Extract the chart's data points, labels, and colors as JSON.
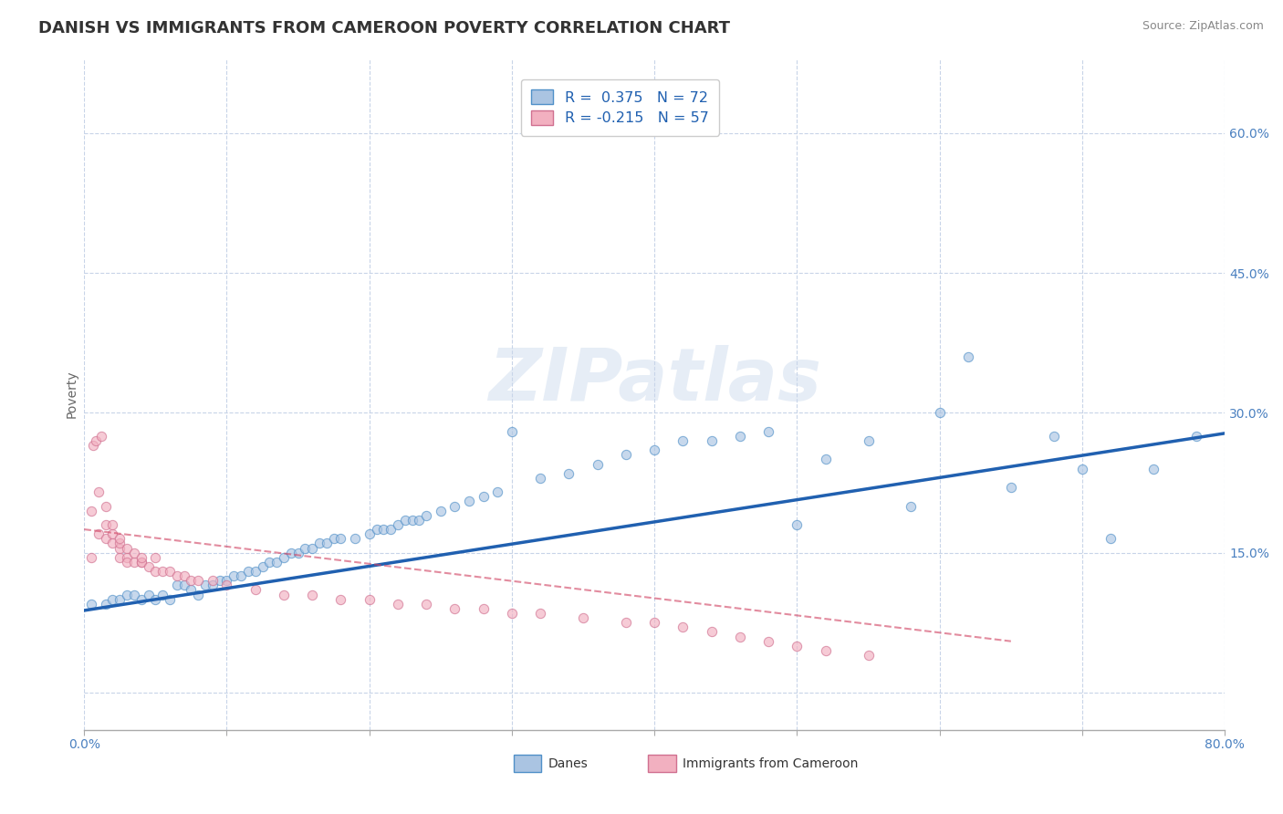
{
  "title": "DANISH VS IMMIGRANTS FROM CAMEROON POVERTY CORRELATION CHART",
  "source": "Source: ZipAtlas.com",
  "ylabel": "Poverty",
  "xlim": [
    0.0,
    0.8
  ],
  "ylim": [
    -0.04,
    0.68
  ],
  "xticks": [
    0.0,
    0.1,
    0.2,
    0.3,
    0.4,
    0.5,
    0.6,
    0.7,
    0.8
  ],
  "ytick_positions": [
    0.0,
    0.15,
    0.3,
    0.45,
    0.6
  ],
  "ytick_labels": [
    "",
    "15.0%",
    "30.0%",
    "45.0%",
    "60.0%"
  ],
  "danes_R": 0.375,
  "danes_N": 72,
  "immigrants_R": -0.215,
  "immigrants_N": 57,
  "danes_color": "#aac4e2",
  "danes_edge_color": "#5090c8",
  "danes_line_color": "#2060b0",
  "immigrants_color": "#f2b0c0",
  "immigrants_edge_color": "#d07090",
  "immigrants_line_color": "#d04060",
  "background_color": "#ffffff",
  "grid_color": "#c8d4e8",
  "watermark": "ZIPatlas",
  "danes_x": [
    0.005,
    0.015,
    0.02,
    0.025,
    0.03,
    0.035,
    0.04,
    0.045,
    0.05,
    0.055,
    0.06,
    0.065,
    0.07,
    0.075,
    0.08,
    0.085,
    0.09,
    0.095,
    0.1,
    0.105,
    0.11,
    0.115,
    0.12,
    0.125,
    0.13,
    0.135,
    0.14,
    0.145,
    0.15,
    0.155,
    0.16,
    0.165,
    0.17,
    0.175,
    0.18,
    0.19,
    0.2,
    0.205,
    0.21,
    0.215,
    0.22,
    0.225,
    0.23,
    0.235,
    0.24,
    0.25,
    0.26,
    0.27,
    0.28,
    0.29,
    0.3,
    0.32,
    0.34,
    0.36,
    0.38,
    0.4,
    0.42,
    0.44,
    0.46,
    0.48,
    0.5,
    0.52,
    0.55,
    0.58,
    0.6,
    0.62,
    0.65,
    0.68,
    0.7,
    0.72,
    0.75,
    0.78
  ],
  "danes_y": [
    0.095,
    0.095,
    0.1,
    0.1,
    0.105,
    0.105,
    0.1,
    0.105,
    0.1,
    0.105,
    0.1,
    0.115,
    0.115,
    0.11,
    0.105,
    0.115,
    0.115,
    0.12,
    0.12,
    0.125,
    0.125,
    0.13,
    0.13,
    0.135,
    0.14,
    0.14,
    0.145,
    0.15,
    0.15,
    0.155,
    0.155,
    0.16,
    0.16,
    0.165,
    0.165,
    0.165,
    0.17,
    0.175,
    0.175,
    0.175,
    0.18,
    0.185,
    0.185,
    0.185,
    0.19,
    0.195,
    0.2,
    0.205,
    0.21,
    0.215,
    0.28,
    0.23,
    0.235,
    0.245,
    0.255,
    0.26,
    0.27,
    0.27,
    0.275,
    0.28,
    0.18,
    0.25,
    0.27,
    0.2,
    0.3,
    0.36,
    0.22,
    0.275,
    0.24,
    0.165,
    0.24,
    0.275
  ],
  "immigrants_x": [
    0.005,
    0.005,
    0.01,
    0.01,
    0.015,
    0.015,
    0.015,
    0.02,
    0.02,
    0.02,
    0.025,
    0.025,
    0.025,
    0.025,
    0.03,
    0.03,
    0.03,
    0.035,
    0.035,
    0.04,
    0.04,
    0.04,
    0.045,
    0.05,
    0.05,
    0.055,
    0.06,
    0.065,
    0.07,
    0.075,
    0.08,
    0.09,
    0.1,
    0.12,
    0.14,
    0.16,
    0.18,
    0.2,
    0.22,
    0.24,
    0.26,
    0.28,
    0.3,
    0.32,
    0.35,
    0.38,
    0.4,
    0.42,
    0.44,
    0.46,
    0.48,
    0.5,
    0.52,
    0.55,
    0.006,
    0.008,
    0.012
  ],
  "immigrants_y": [
    0.145,
    0.195,
    0.17,
    0.215,
    0.18,
    0.2,
    0.165,
    0.17,
    0.16,
    0.18,
    0.155,
    0.16,
    0.165,
    0.145,
    0.155,
    0.145,
    0.14,
    0.14,
    0.15,
    0.14,
    0.14,
    0.145,
    0.135,
    0.13,
    0.145,
    0.13,
    0.13,
    0.125,
    0.125,
    0.12,
    0.12,
    0.12,
    0.115,
    0.11,
    0.105,
    0.105,
    0.1,
    0.1,
    0.095,
    0.095,
    0.09,
    0.09,
    0.085,
    0.085,
    0.08,
    0.075,
    0.075,
    0.07,
    0.065,
    0.06,
    0.055,
    0.05,
    0.045,
    0.04,
    0.265,
    0.27,
    0.275
  ],
  "danes_trend_x": [
    0.0,
    0.8
  ],
  "danes_trend_y": [
    0.088,
    0.278
  ],
  "immigrants_trend_x": [
    0.0,
    0.65
  ],
  "immigrants_trend_y": [
    0.175,
    0.055
  ],
  "title_fontsize": 13,
  "axis_label_fontsize": 10,
  "tick_fontsize": 10,
  "legend_fontsize": 11.5,
  "scatter_size": 55,
  "scatter_alpha": 0.65
}
